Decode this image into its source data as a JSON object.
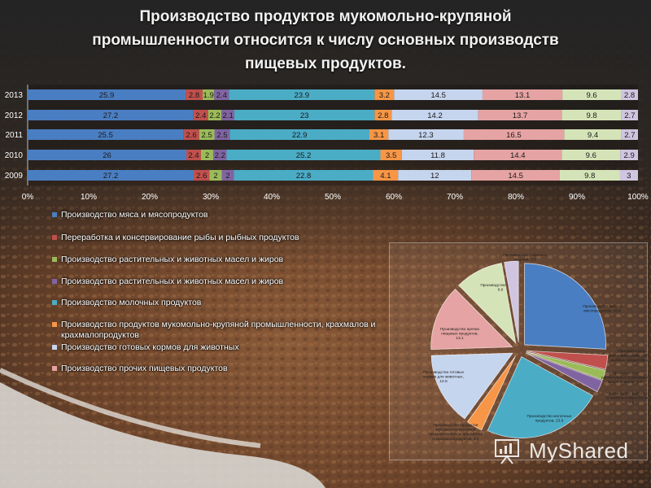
{
  "title": {
    "line1": "Производство продуктов мукомольно-крупяной",
    "line2": "промышленности относится к числу основных производств",
    "line3": "пищевых продуктов."
  },
  "chart_data": [
    {
      "type": "bar",
      "orientation": "horizontal",
      "stacked": true,
      "percent_stacked": true,
      "categories": [
        "2013",
        "2012",
        "2011",
        "2010",
        "2009"
      ],
      "xlim": [
        0,
        100
      ],
      "x_ticks": [
        "0%",
        "10%",
        "20%",
        "30%",
        "40%",
        "50%",
        "60%",
        "70%",
        "80%",
        "90%",
        "100%"
      ],
      "series": [
        {
          "name": "Производство мяса и мясопродуктов",
          "color": "#4a7ec2",
          "values": [
            25.9,
            27.2,
            25.5,
            26,
            27.2
          ]
        },
        {
          "name": "Переработка и консервирование рыбы и рыбных продуктов",
          "color": "#c0504d",
          "values": [
            2.8,
            2.4,
            2.6,
            2.4,
            2.6
          ]
        },
        {
          "name": "Производство растительных и животных масел и жиров",
          "color": "#9bbb59",
          "values": [
            1.9,
            2.2,
            2.5,
            2,
            2
          ]
        },
        {
          "name": "Производство растительных и животных масел и жиров",
          "color": "#8064a2",
          "values": [
            2.4,
            2.1,
            2.5,
            2.2,
            2
          ]
        },
        {
          "name": "Производство молочных продуктов",
          "color": "#4bacc6",
          "values": [
            23.9,
            23,
            22.9,
            25.2,
            22.8
          ]
        },
        {
          "name": "Производство продуктов мукомольно-крупяной промышленности, крахмалов и крахмалопродуктов",
          "color": "#f79646",
          "values": [
            3.2,
            2.8,
            3.1,
            3.5,
            4.1
          ]
        },
        {
          "name": "Производство готовых кормов для животных",
          "color": "#c6d5ee",
          "values": [
            14.5,
            14.2,
            12.3,
            11.8,
            12
          ]
        },
        {
          "name": "Производство прочих пищевых продуктов",
          "color": "#e6a3a3",
          "values": [
            13.1,
            13.7,
            16.5,
            14.4,
            14.5
          ]
        },
        {
          "name": "",
          "color": "#d5e4b8",
          "values": [
            9.6,
            9.8,
            9.4,
            9.6,
            9.8
          ]
        },
        {
          "name": "",
          "color": "#cfc5e0",
          "values": [
            2.8,
            2.7,
            2.7,
            2.9,
            3
          ]
        }
      ]
    },
    {
      "type": "pie",
      "slices": [
        {
          "label": "Производство мяса и мясопродуктов, 25.9",
          "value": 25.9,
          "color": "#4a7ec2"
        },
        {
          "label": "Переработка и консервирование рыбы и рыбных продуктов, 2.8",
          "value": 2.8,
          "color": "#c0504d"
        },
        {
          "label": "Производство растительных и животных масел и жиров, 1.9",
          "value": 1.9,
          "color": "#9bbb59"
        },
        {
          "label": "Производство растительных и животных масел и жиров, 2.4",
          "value": 2.4,
          "color": "#8064a2"
        },
        {
          "label": "Производство молочных продуктов, 23.9",
          "value": 23.9,
          "color": "#4bacc6"
        },
        {
          "label": "Производство продуктов мукомольно-крупяной промышленности, крахмалов и крахмалопродуктов, 3.2",
          "value": 3.2,
          "color": "#f79646"
        },
        {
          "label": "Производство готовых кормов для животных, 14.5",
          "value": 14.5,
          "color": "#c6d5ee"
        },
        {
          "label": "Производство прочих пищевых продуктов, 13.1",
          "value": 13.1,
          "color": "#e6a3a3"
        },
        {
          "label": "Производство сахара, 9.6",
          "value": 9.6,
          "color": "#d5e4b8"
        },
        {
          "label": "Производство табачных изделий, 2.8",
          "value": 2.8,
          "color": "#cfc5e0"
        }
      ]
    }
  ],
  "legend": [
    {
      "label": "Производство мяса и мясопродуктов",
      "color": "#4a7ec2"
    },
    {
      "label": "Переработка и консервирование рыбы и рыбных продуктов",
      "color": "#c0504d"
    },
    {
      "label": "Производство растительных и животных масел и жиров",
      "color": "#9bbb59"
    },
    {
      "label": "Производство растительных и животных масел и жиров",
      "color": "#8064a2"
    },
    {
      "label": "Производство молочных продуктов",
      "color": "#4bacc6"
    },
    {
      "label": "Производство продуктов мукомольно-крупяной промышленности, крахмалов и крахмалопродуктов",
      "color": "#f79646"
    },
    {
      "label": "Производство готовых кормов для животных",
      "color": "#c6d5ee"
    },
    {
      "label": "Производство прочих пищевых продуктов",
      "color": "#e6a3a3"
    }
  ],
  "watermark": {
    "text": "MyShared"
  }
}
